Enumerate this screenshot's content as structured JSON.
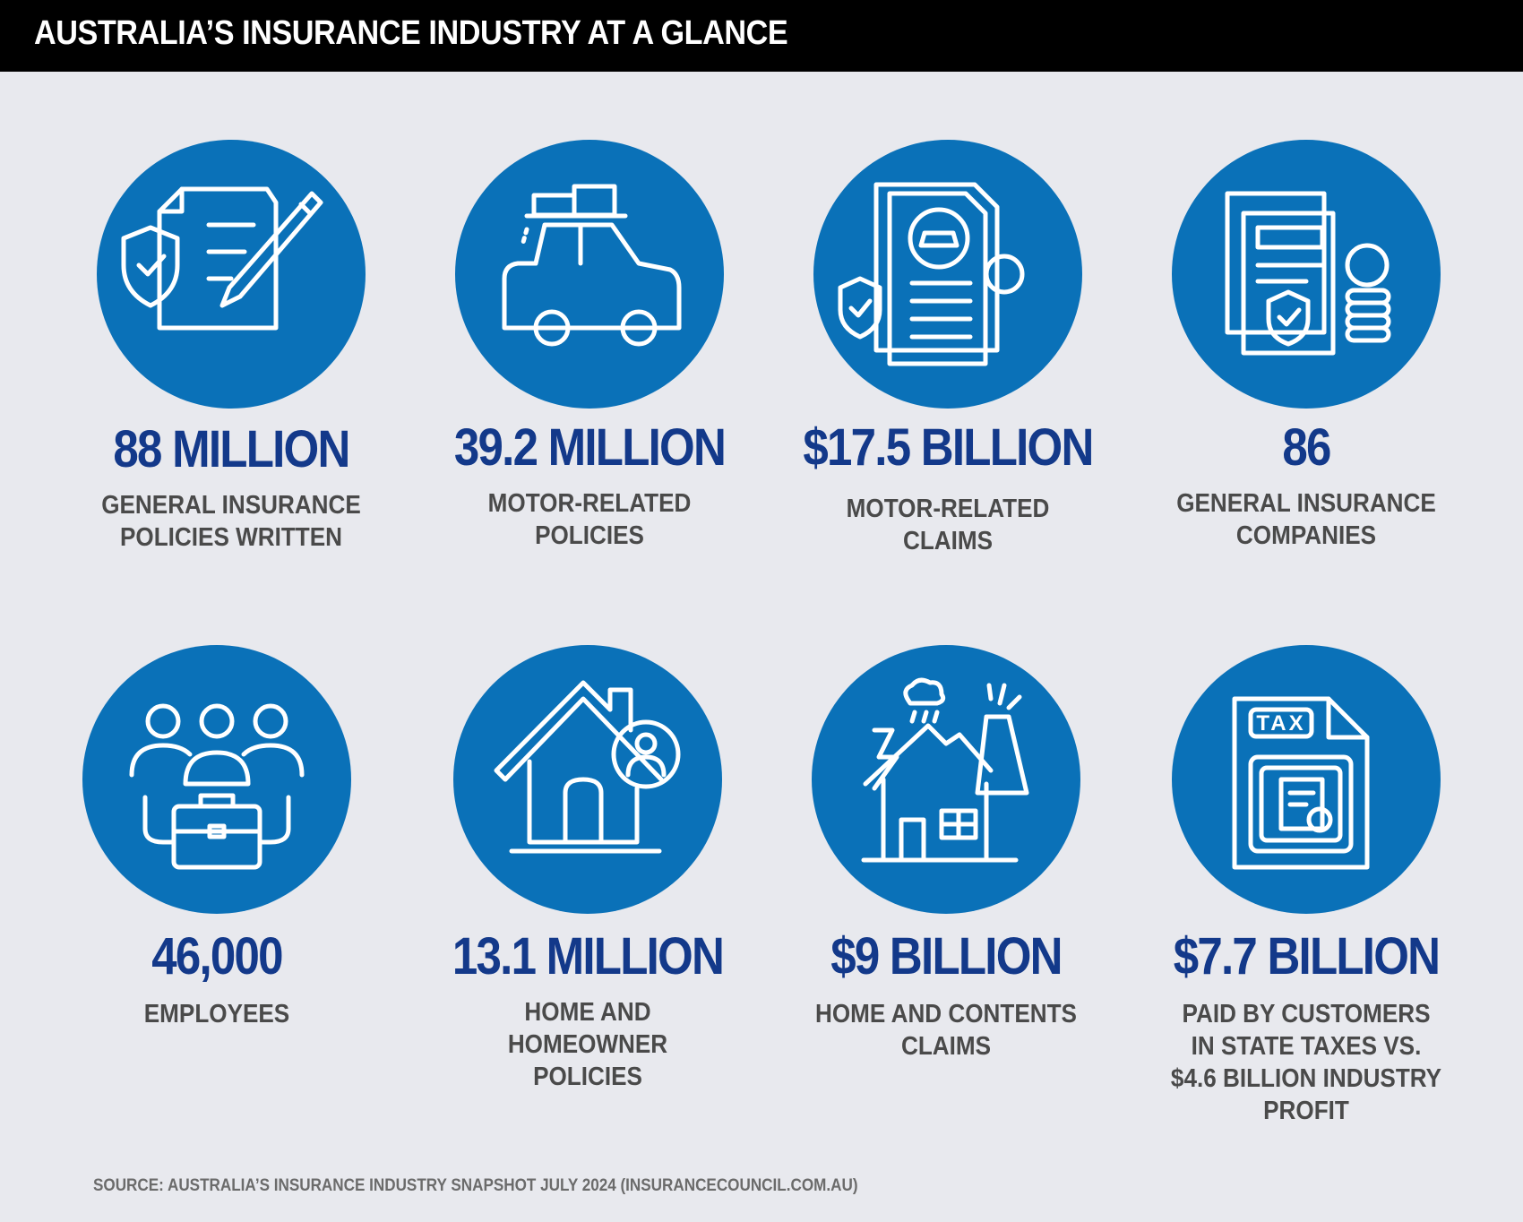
{
  "header": {
    "title": "AUSTRALIA’S INSURANCE INDUSTRY AT A GLANCE"
  },
  "stats": [
    {
      "value": "88 MILLION",
      "label": "GENERAL INSURANCE POLICIES WRITTEN",
      "icon": "policy-document-pen-icon"
    },
    {
      "value": "39.2 MILLION",
      "label": "MOTOR-RELATED POLICIES",
      "icon": "car-with-luggage-icon"
    },
    {
      "value": "$17.5 BILLION",
      "label": "MOTOR-RELATED CLAIMS",
      "icon": "car-claim-document-icon"
    },
    {
      "value": "86",
      "label": "GENERAL INSURANCE COMPANIES",
      "icon": "insurance-company-document-coins-icon"
    },
    {
      "value": "46,000",
      "label": "EMPLOYEES",
      "icon": "employees-briefcase-icon"
    },
    {
      "value": "13.1 MILLION",
      "label": "HOME AND HOMEOWNER POLICIES",
      "icon": "house-homeowner-icon"
    },
    {
      "value": "$9 BILLION",
      "label": "HOME AND CONTENTS CLAIMS",
      "icon": "house-storm-damage-icon"
    },
    {
      "value": "$7.7 BILLION",
      "label": "PAID BY CUSTOMERS IN STATE TAXES VS. $4.6 BILLION INDUSTRY PROFIT",
      "icon": "tax-document-icon"
    }
  ],
  "footer": {
    "source": "SOURCE: AUSTRALIA’S INSURANCE INDUSTRY SNAPSHOT JULY 2024 (INSURANCECOUNCIL.COM.AU)"
  },
  "colors": {
    "circle": "#0a71b8",
    "value_text": "#13398a",
    "label_text": "#4a4a4a",
    "background": "#e8e9ee",
    "header": "#000000"
  }
}
